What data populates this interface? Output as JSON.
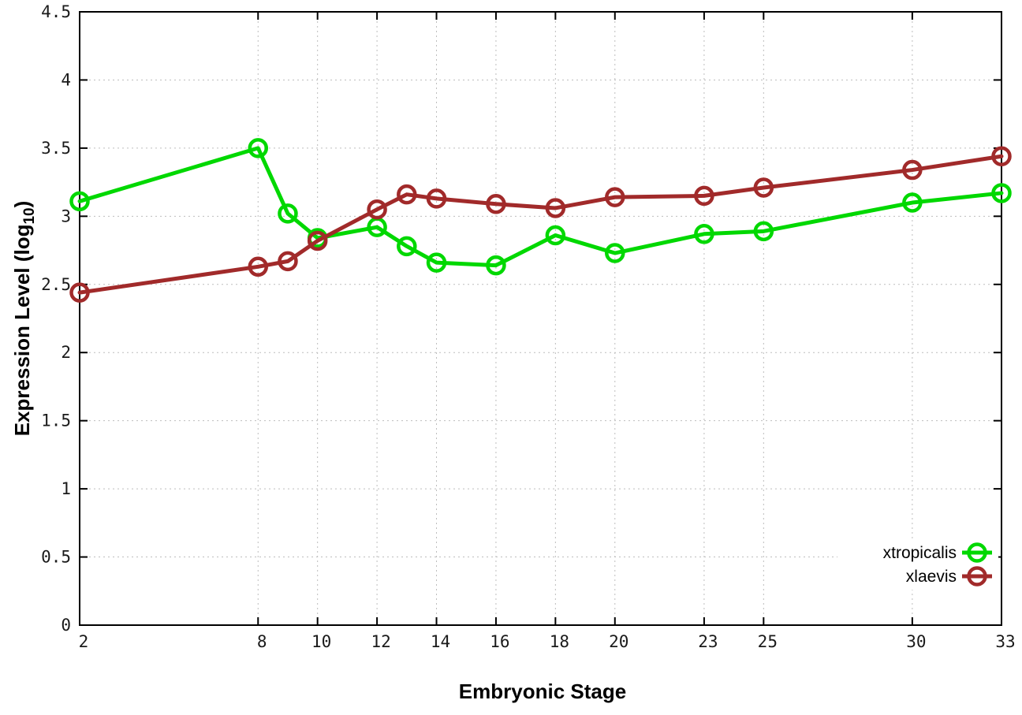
{
  "chart_data": {
    "type": "line",
    "title": "",
    "xlabel": "Embryonic Stage",
    "ylabel": "Expression Level (log10)",
    "ylabel_prefix": "Expression Level (log",
    "ylabel_sub": "10",
    "ylabel_suffix": ")",
    "xlim": [
      2,
      33
    ],
    "ylim": [
      0,
      4.5
    ],
    "xticks": [
      2,
      8,
      10,
      12,
      14,
      16,
      18,
      20,
      23,
      25,
      30,
      33
    ],
    "yticks": [
      0,
      0.5,
      1,
      1.5,
      2,
      2.5,
      3,
      3.5,
      4,
      4.5
    ],
    "grid": true,
    "legend_position": "bottom-right",
    "x": [
      2,
      8,
      9,
      10,
      12,
      13,
      14,
      16,
      18,
      20,
      23,
      25,
      30,
      33
    ],
    "series": [
      {
        "name": "xtropicalis",
        "color": "#00d800",
        "values": [
          3.11,
          3.5,
          3.02,
          2.84,
          2.92,
          2.78,
          2.66,
          2.64,
          2.86,
          2.73,
          2.87,
          2.89,
          3.1,
          3.17
        ]
      },
      {
        "name": "xlaevis",
        "color": "#a12a2a",
        "values": [
          2.44,
          2.63,
          2.67,
          2.82,
          3.05,
          3.16,
          3.13,
          3.09,
          3.06,
          3.14,
          3.15,
          3.21,
          3.34,
          3.44
        ]
      }
    ],
    "colors": {
      "grid": "#bdbdbd",
      "axis": "#000000",
      "tick_label": "#1a1a1a"
    }
  }
}
